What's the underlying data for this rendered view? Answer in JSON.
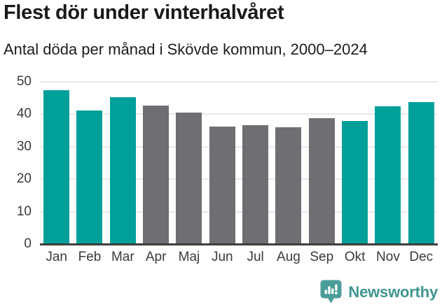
{
  "header": {
    "title": "Flest dör under vinterhalvåret",
    "subtitle": "Antal döda per månad i Skövde kommun, 2000–2024"
  },
  "chart_data": {
    "type": "bar",
    "title": "Flest dör under vinterhalvåret",
    "subtitle": "Antal döda per månad i Skövde kommun, 2000–2024",
    "categories": [
      "Jan",
      "Feb",
      "Mar",
      "Apr",
      "Maj",
      "Jun",
      "Jul",
      "Aug",
      "Sep",
      "Okt",
      "Nov",
      "Dec"
    ],
    "values": [
      47.5,
      41.1,
      45.2,
      42.7,
      40.5,
      36.3,
      36.6,
      36.1,
      38.7,
      37.9,
      42.4,
      43.8
    ],
    "bar_colors": [
      "teal",
      "teal",
      "teal",
      "gray",
      "gray",
      "gray",
      "gray",
      "gray",
      "gray",
      "teal",
      "teal",
      "teal"
    ],
    "palette": {
      "teal": "#00a09a",
      "gray": "#6e6e73"
    },
    "xlabel": "",
    "ylabel": "",
    "ylim": [
      0,
      50
    ],
    "yticks": [
      0,
      10,
      20,
      30,
      40,
      50
    ],
    "grid": true,
    "legend": false,
    "highlight_meaning": "winter-half-year months highlighted in teal"
  },
  "style_colors": {
    "baseline": "#3d3d3d",
    "gridline": "#e8e8e8",
    "axis_text": "#3a3a3a",
    "title_text": "#191919"
  },
  "footer": {
    "brand": "Newsworthy",
    "brand_color": "#3f958f",
    "logo_icon_color": "#4a9d98"
  }
}
